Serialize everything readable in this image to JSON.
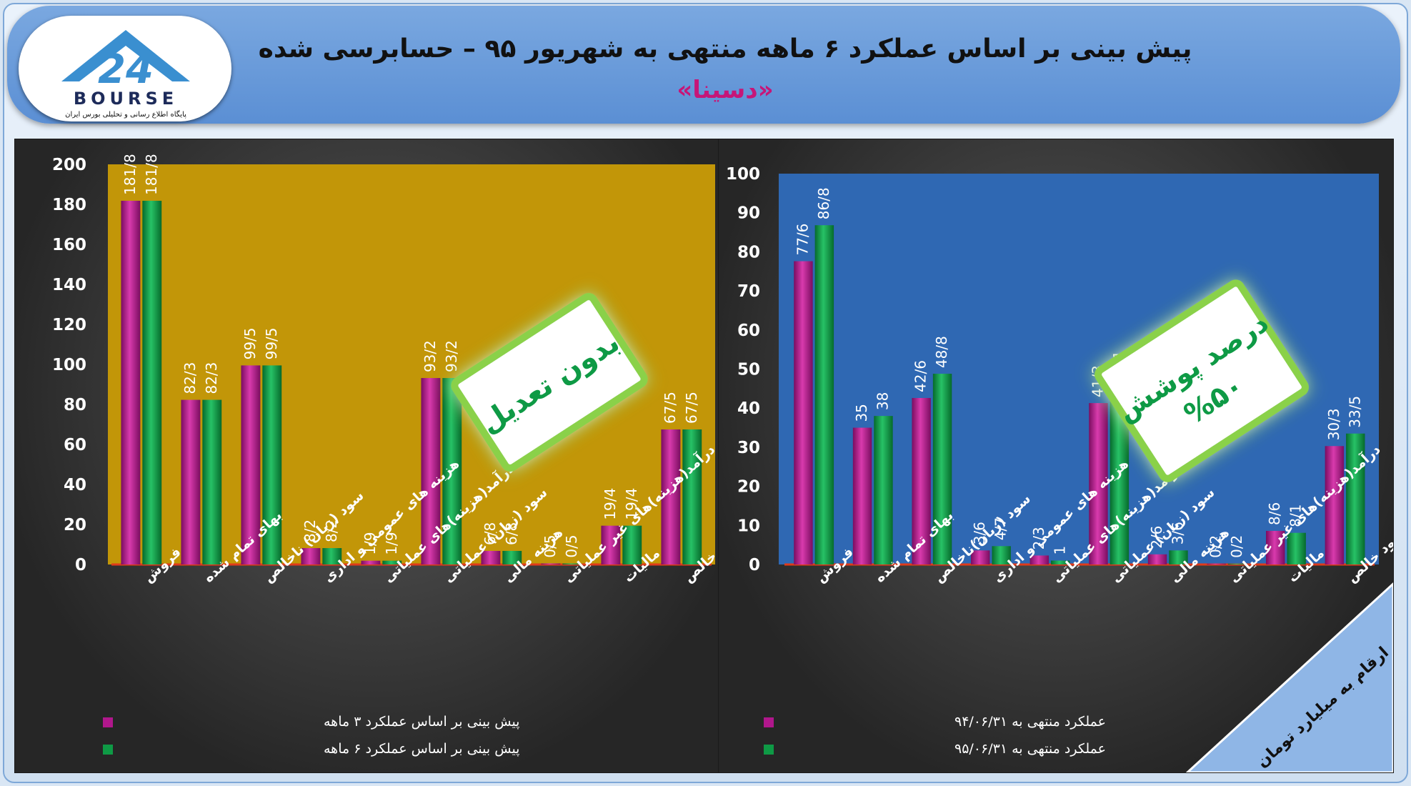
{
  "header": {
    "title": "پیش بینی بر اساس عملکرد ۶ ماهه منتهی به شهریور ۹۵ – حسابرسی  شده",
    "subtitle": "«دسینا»"
  },
  "logo": {
    "brand": "BOURSE",
    "number": "24",
    "tagline": "پایگاه اطلاع رسانی و تحلیلی بورس ایران"
  },
  "left_badge": {
    "text": "بدون تعدیل"
  },
  "right_badge": {
    "line1": "درصد پوشش",
    "line2": "%۵۰"
  },
  "corner_note": "ارقام به میلیارد تومان",
  "colors": {
    "magenta": "#b0178c",
    "green": "#0e9a45",
    "left_bg": "#c29608",
    "right_bg": "#2f68b3",
    "badge_glow": "#8ad14a"
  },
  "chart_data": [
    {
      "type": "bar",
      "categories": [
        "فروش",
        "بهای تمام شده",
        "سود (زیان) ناخالص",
        "هزینه های عمومی و اداری",
        "درآمد(هزینه)های عملیاتی",
        "سود (زیان) عملیاتی",
        "هزینه مالی",
        "درآمد(هزینه)های غیر عملیاتی",
        "مالیات",
        "سود خالص"
      ],
      "series": [
        {
          "name": "پیش بینی بر اساس عملکرد ۳ ماهه",
          "values": [
            181.8,
            82.3,
            99.5,
            8.2,
            1.9,
            93.2,
            6.8,
            0.5,
            19.4,
            67.5
          ],
          "labels": [
            "181/8",
            "82/3",
            "99/5",
            "8/2",
            "1/9",
            "93/2",
            "6/8",
            "0/5",
            "19/4",
            "67/5"
          ]
        },
        {
          "name": "پیش بینی بر اساس عملکرد ۶ ماهه",
          "values": [
            181.8,
            82.3,
            99.5,
            8.2,
            1.9,
            93.2,
            6.8,
            0.5,
            19.4,
            67.5
          ],
          "labels": [
            "181/8",
            "82/3",
            "99/5",
            "8/2",
            "1/9",
            "93/2",
            "6/8",
            "0/5",
            "19/4",
            "67/5"
          ]
        }
      ],
      "yticks": [
        0,
        20,
        40,
        60,
        80,
        100,
        120,
        140,
        160,
        180,
        200
      ],
      "ylim": [
        0,
        200
      ],
      "grid": false,
      "legend_position": "bottom-left"
    },
    {
      "type": "bar",
      "categories": [
        "فروش",
        "بهای تمام شده",
        "سود (زیان)ناخالص",
        "هزینه های عمومی و اداری",
        "درآمد(هزینه)های عملیاتی",
        "سود (زیان) عملیاتی",
        "هزینه مالی",
        "درآمد(هزینه)های غیر عملیاتی",
        "مالیات",
        "سود خالص"
      ],
      "series": [
        {
          "name": "عملکرد منتهی به ۹۴/۰۶/۳۱",
          "values": [
            77.6,
            35,
            42.6,
            3.6,
            2.3,
            41.3,
            2.6,
            0.2,
            8.6,
            30.3
          ],
          "labels": [
            "77/6",
            "35",
            "42/6",
            "3/6",
            "2/3",
            "41/3",
            "2/6",
            "0/2",
            "8/6",
            "30/3"
          ]
        },
        {
          "name": "عملکرد منتهی به ۹۵/۰۶/۳۱",
          "values": [
            86.8,
            38,
            48.8,
            4.7,
            1,
            45.1,
            3.6,
            0.2,
            8.1,
            33.5
          ],
          "labels": [
            "86/8",
            "38",
            "48/8",
            "4/7",
            "1",
            "45/1",
            "3/6",
            "0/2",
            "8/1",
            "33/5"
          ]
        }
      ],
      "yticks": [
        0,
        10,
        20,
        30,
        40,
        50,
        60,
        70,
        80,
        90,
        100
      ],
      "ylim": [
        0,
        100
      ],
      "grid": false,
      "legend_position": "bottom-left"
    }
  ]
}
